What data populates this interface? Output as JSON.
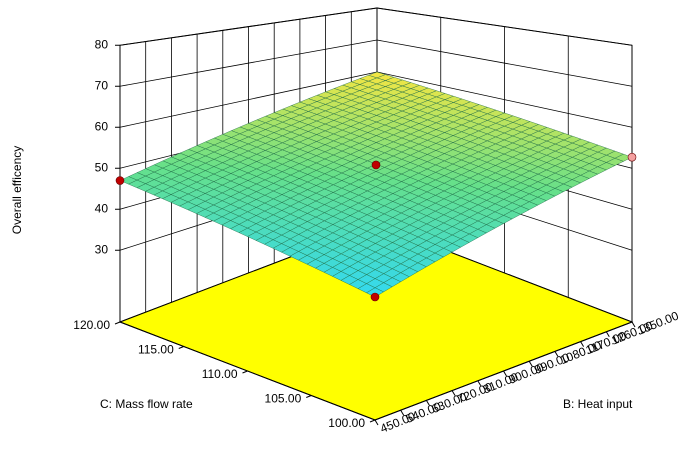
{
  "chart_data": {
    "type": "surface3d",
    "zlabel": "Overall efficency",
    "xlabel": "B: Heat input",
    "ylabel": "C: Mass flow rate",
    "xlim": [
      450,
      1350
    ],
    "xticks": [
      {
        "value": 450,
        "label": "450.00"
      },
      {
        "value": 540,
        "label": "540.00"
      },
      {
        "value": 630,
        "label": "630.00"
      },
      {
        "value": 720,
        "label": "720.00"
      },
      {
        "value": 810,
        "label": "810.00"
      },
      {
        "value": 900,
        "label": "900.00"
      },
      {
        "value": 990,
        "label": "990.00"
      },
      {
        "value": 1080,
        "label": "1080.00"
      },
      {
        "value": 1170,
        "label": "1170.00"
      },
      {
        "value": 1260,
        "label": "1260.00"
      },
      {
        "value": 1350,
        "label": "1350.00"
      }
    ],
    "ylim": [
      100,
      120
    ],
    "yticks": [
      {
        "value": 100,
        "label": "100.00"
      },
      {
        "value": 105,
        "label": "105.00"
      },
      {
        "value": 110,
        "label": "110.00"
      },
      {
        "value": 115,
        "label": "115.00"
      },
      {
        "value": 120,
        "label": "120.00"
      }
    ],
    "zlim": [
      12.5,
      80
    ],
    "zticks": [
      30,
      40,
      50,
      60,
      70,
      80
    ],
    "surface_z": [
      [
        37.1,
        47
      ],
      [
        52.7,
        60
      ]
    ],
    "colormap": [
      "#33d9f0",
      "#66e08a",
      "#f5e642"
    ],
    "floor_color": "#ffff00",
    "grid": true,
    "points": {
      "x": [
        450,
        1350,
        450,
        900
      ],
      "y": [
        120,
        100,
        100,
        110
      ],
      "z": [
        47,
        52.7,
        37.1,
        50.8
      ],
      "colors": [
        "#c00000",
        "#f4a0a0",
        "#c00000",
        "#c00000"
      ]
    }
  }
}
